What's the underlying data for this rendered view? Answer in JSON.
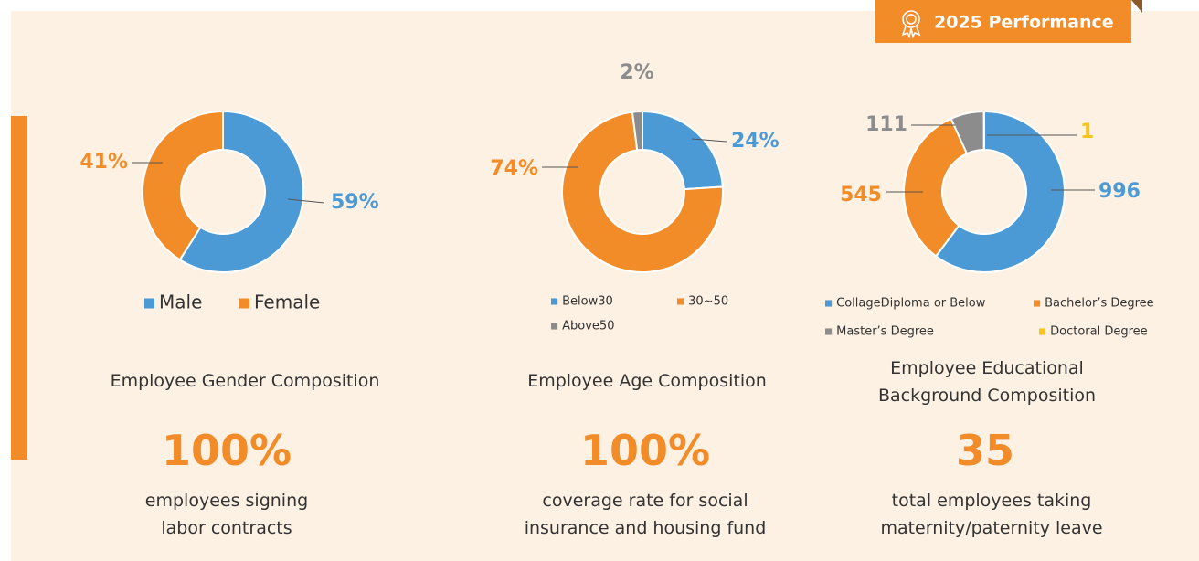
{
  "badge": "2025 Performance",
  "chart_data": [
    {
      "type": "pie",
      "title": "Employee Gender Composition",
      "categories": [
        "Male",
        "Female"
      ],
      "values": [
        59,
        41
      ],
      "value_labels": [
        "59%",
        "41%"
      ],
      "colors": [
        "#4b9ad6",
        "#f28c28"
      ]
    },
    {
      "type": "pie",
      "title": "Employee Age Composition",
      "categories": [
        "Below30",
        "30~50",
        "Above50"
      ],
      "values": [
        24,
        74,
        2
      ],
      "value_labels": [
        "24%",
        "74%",
        "2%"
      ],
      "colors": [
        "#4b9ad6",
        "#f28c28",
        "#8c8c8c"
      ]
    },
    {
      "type": "pie",
      "title": "Employee Educational Background Composition",
      "categories": [
        "CollageDiploma or Below",
        "Bachelor’s Degree",
        "Master’s Degree",
        "Doctoral Degree"
      ],
      "values": [
        996,
        545,
        111,
        1
      ],
      "colors": [
        "#4b9ad6",
        "#f28c28",
        "#8c8c8c",
        "#f5c518"
      ]
    }
  ],
  "stats": [
    {
      "value": "100%",
      "text": "employees signing labor contracts"
    },
    {
      "value": "100%",
      "text": "coverage rate for social insurance and housing fund"
    },
    {
      "value": "35",
      "text": "total employees taking maternity/paternity leave"
    }
  ]
}
